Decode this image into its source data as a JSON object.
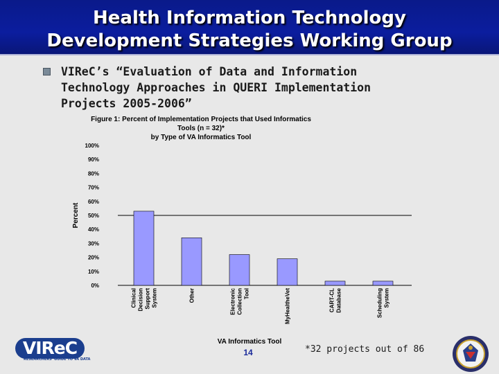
{
  "header": {
    "title": "Health Information Technology\nDevelopment Strategies Working Group"
  },
  "bullet": {
    "text": "VIReC’s “Evaluation of Data and Information\nTechnology Approaches in QUERI Implementation\nProjects 2005-2006”"
  },
  "chart_data": {
    "type": "bar",
    "title": "Figure 1:  Percent of Implementation Projects that Used Informatics Tools (n = 32)*\nby Type of VA Informatics Tool",
    "xlabel": "VA Informatics Tool",
    "ylabel": "Percent",
    "ylim": [
      0,
      100
    ],
    "yticks": [
      "0%",
      "10%",
      "20%",
      "30%",
      "40%",
      "50%",
      "60%",
      "70%",
      "80%",
      "90%",
      "100%"
    ],
    "categories": [
      [
        "Clinical",
        "Decision",
        "Support",
        "System"
      ],
      [
        "Other"
      ],
      [
        "Electronic",
        "Collection",
        "Tool"
      ],
      [
        "MyHealtheVet"
      ],
      [
        "CART-CL",
        "Database"
      ],
      [
        "Scheduling",
        "System"
      ]
    ],
    "values": [
      53,
      34,
      22,
      19,
      3,
      3
    ],
    "reference_line": 50,
    "bar_color": "#9999ff"
  },
  "footer": {
    "logo_text": "VIReC",
    "logo_tagline": "RESEARCHERS' GUIDE TO VA DATA",
    "page_number": "14",
    "footnote": "*32 projects out of 86"
  }
}
